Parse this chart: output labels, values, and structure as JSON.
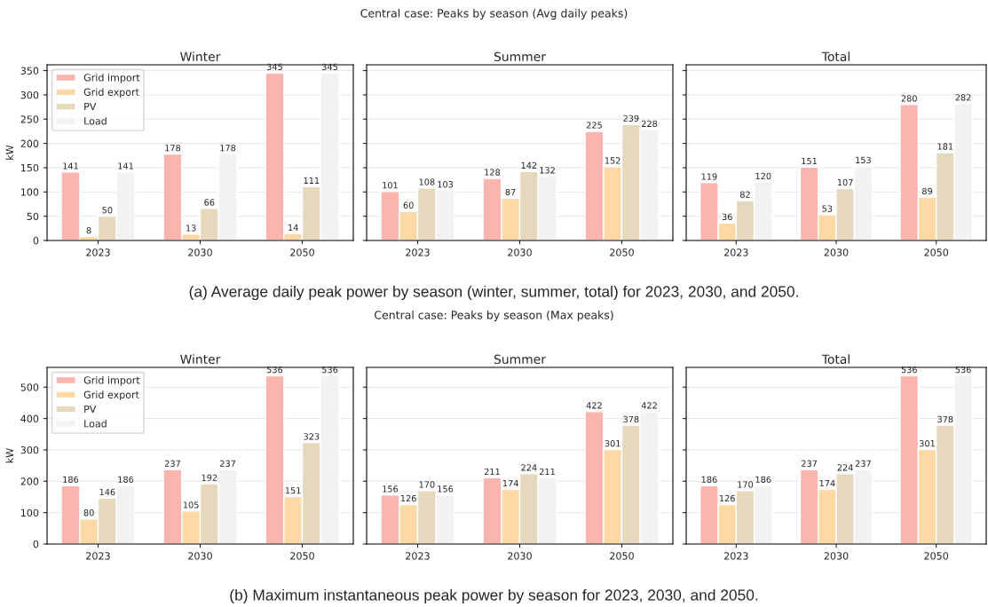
{
  "chart_data": [
    {
      "type": "bar",
      "title": "Winter",
      "ylabel": "kW",
      "categories": [
        "2023",
        "2030",
        "2050"
      ],
      "ylim": [
        0,
        362
      ],
      "yticks": [
        0,
        50,
        100,
        150,
        200,
        250,
        300,
        350
      ],
      "grid": "y",
      "legend": "top left",
      "data_labels": true,
      "annotations": [
        "Central case: Peaks by season (Avg daily peaks)",
        "(a) Average daily peak power by season (winter, summer, total) for 2023, 2030, and 2050."
      ],
      "series": [
        {
          "name": "Grid import",
          "color": "#fbb4ae",
          "values": [
            141,
            178,
            345
          ]
        },
        {
          "name": "Grid export",
          "color": "#fed9a6",
          "values": [
            8,
            13,
            14
          ]
        },
        {
          "name": "PV",
          "color": "#e5d8bd",
          "values": [
            50,
            66,
            111
          ]
        },
        {
          "name": "Load",
          "color": "#f2f2f2",
          "values": [
            141,
            178,
            345
          ]
        }
      ]
    },
    {
      "type": "bar",
      "title": "Summer",
      "categories": [
        "2023",
        "2030",
        "2050"
      ],
      "ylim": [
        0,
        362
      ],
      "yticks": [
        0,
        50,
        100,
        150,
        200,
        250,
        300,
        350
      ],
      "grid": "y",
      "tick_labels": "x",
      "data_labels": true,
      "series": [
        {
          "color": "#fbb4ae",
          "values": [
            101,
            128,
            225
          ]
        },
        {
          "color": "#fed9a6",
          "values": [
            60,
            87,
            152
          ]
        },
        {
          "color": "#e5d8bd",
          "values": [
            108,
            142,
            239
          ]
        },
        {
          "color": "#f2f2f2",
          "values": [
            103,
            132,
            228
          ]
        }
      ]
    },
    {
      "type": "bar",
      "title": "Total",
      "categories": [
        "2023",
        "2030",
        "2050"
      ],
      "ylim": [
        0,
        362
      ],
      "yticks": [
        0,
        50,
        100,
        150,
        200,
        250,
        300,
        350
      ],
      "grid": "y",
      "tick_labels": "x",
      "data_labels": true,
      "series": [
        {
          "color": "#fbb4ae",
          "values": [
            119,
            151,
            280
          ]
        },
        {
          "color": "#fed9a6",
          "values": [
            36,
            53,
            89
          ]
        },
        {
          "color": "#e5d8bd",
          "values": [
            82,
            107,
            181
          ]
        },
        {
          "color": "#f2f2f2",
          "values": [
            120,
            153,
            282
          ]
        }
      ]
    },
    {
      "type": "bar",
      "title": "Winter",
      "ylabel": "kW",
      "categories": [
        "2023",
        "2030",
        "2050"
      ],
      "ylim": [
        0,
        563
      ],
      "yticks": [
        0,
        100,
        200,
        300,
        400,
        500
      ],
      "grid": "y",
      "legend": "top left",
      "data_labels": true,
      "annotations": [
        "Central case: Peaks by season (Max peaks)",
        "(b) Maximum instantaneous peak power by season for 2023, 2030, and 2050."
      ],
      "series": [
        {
          "name": "Grid import",
          "color": "#fbb4ae",
          "values": [
            186,
            237,
            536
          ]
        },
        {
          "name": "Grid export",
          "color": "#fed9a6",
          "values": [
            80,
            105,
            151
          ]
        },
        {
          "name": "PV",
          "color": "#e5d8bd",
          "values": [
            146,
            192,
            323
          ]
        },
        {
          "name": "Load",
          "color": "#f2f2f2",
          "values": [
            186,
            237,
            536
          ]
        }
      ]
    },
    {
      "type": "bar",
      "title": "Summer",
      "categories": [
        "2023",
        "2030",
        "2050"
      ],
      "ylim": [
        0,
        563
      ],
      "yticks": [
        0,
        100,
        200,
        300,
        400,
        500
      ],
      "grid": "y",
      "tick_labels": "x",
      "data_labels": true,
      "series": [
        {
          "color": "#fbb4ae",
          "values": [
            156,
            211,
            422
          ]
        },
        {
          "color": "#fed9a6",
          "values": [
            126,
            174,
            301
          ]
        },
        {
          "color": "#e5d8bd",
          "values": [
            170,
            224,
            378
          ]
        },
        {
          "color": "#f2f2f2",
          "values": [
            156,
            211,
            422
          ]
        }
      ]
    },
    {
      "type": "bar",
      "title": "Total",
      "categories": [
        "2023",
        "2030",
        "2050"
      ],
      "ylim": [
        0,
        563
      ],
      "yticks": [
        0,
        100,
        200,
        300,
        400,
        500
      ],
      "grid": "y",
      "tick_labels": "x",
      "data_labels": true,
      "series": [
        {
          "color": "#fbb4ae",
          "values": [
            186,
            237,
            536
          ]
        },
        {
          "color": "#fed9a6",
          "values": [
            126,
            174,
            301
          ]
        },
        {
          "color": "#e5d8bd",
          "values": [
            170,
            224,
            378
          ]
        },
        {
          "color": "#f2f2f2",
          "values": [
            186,
            237,
            536
          ]
        }
      ]
    }
  ]
}
